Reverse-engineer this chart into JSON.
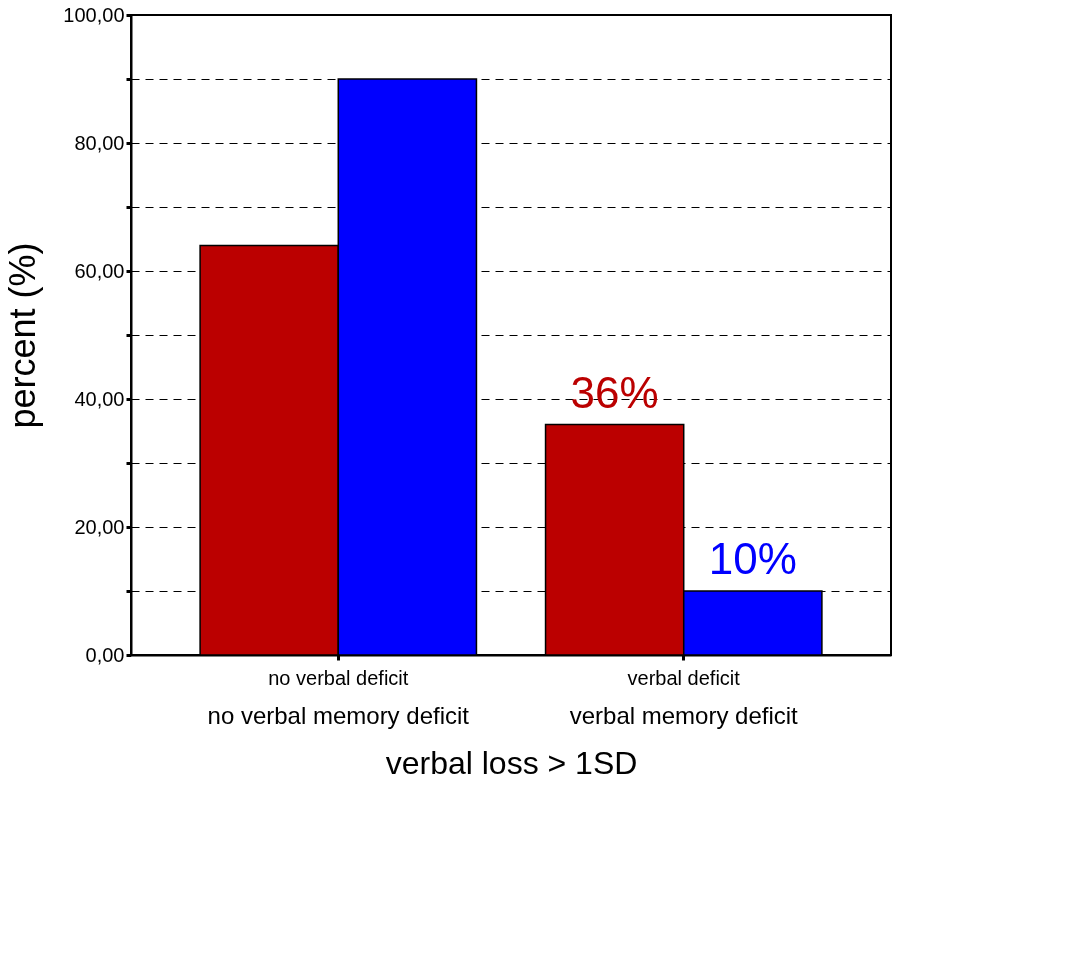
{
  "chart_data": {
    "type": "bar",
    "categories": [
      "no verbal deficit",
      "verbal deficit"
    ],
    "series": [
      {
        "color": "#bb0000",
        "values": [
          64,
          36
        ],
        "value_labels": [
          null,
          "36%"
        ]
      },
      {
        "color": "#0000ff",
        "values": [
          90,
          10
        ],
        "value_labels": [
          null,
          "10%"
        ]
      }
    ],
    "xlabel": "verbal loss > 1SD",
    "ylabel": "percent (%)",
    "annotations": [
      "no verbal memory deficit",
      "verbal memory deficit"
    ],
    "ylim": [
      0,
      100
    ],
    "yticks": [
      {
        "value": 0,
        "label": "0,00"
      },
      {
        "value": 10,
        "label": null
      },
      {
        "value": 20,
        "label": "20,00"
      },
      {
        "value": 30,
        "label": null
      },
      {
        "value": 40,
        "label": "40,00"
      },
      {
        "value": 50,
        "label": null
      },
      {
        "value": 60,
        "label": "60,00"
      },
      {
        "value": 70,
        "label": null
      },
      {
        "value": 80,
        "label": "80,00"
      },
      {
        "value": 90,
        "label": null
      },
      {
        "value": 100,
        "label": "100,00"
      }
    ],
    "grid": "y"
  }
}
